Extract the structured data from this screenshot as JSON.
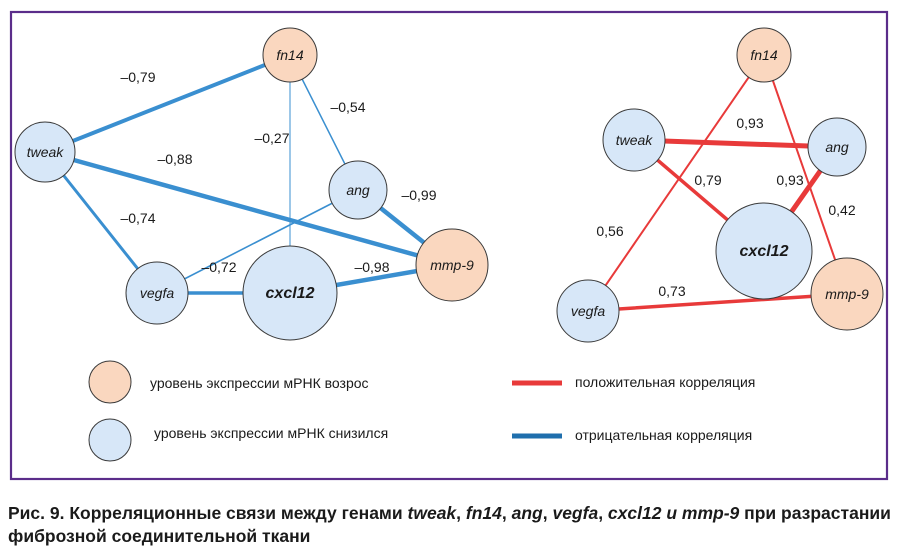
{
  "colors": {
    "frame": "#5b2d8a",
    "node_up_fill": "#fad7bf",
    "node_down_fill": "#d7e7f8",
    "node_stroke": "#3a3a3a",
    "positive": "#e83a3a",
    "negative": "#3a8fd0",
    "legend_negative": "#1f6fad"
  },
  "networks": [
    {
      "id": "negative",
      "nodes": [
        {
          "id": "fn14",
          "label": "fn14",
          "expression": "up"
        },
        {
          "id": "tweak",
          "label": "tweak",
          "expression": "down"
        },
        {
          "id": "ang",
          "label": "ang",
          "expression": "down"
        },
        {
          "id": "vegfa",
          "label": "vegfa",
          "expression": "down"
        },
        {
          "id": "cxcl12",
          "label": "cxcl12",
          "expression": "down"
        },
        {
          "id": "mmp9",
          "label": "mmp-9",
          "expression": "up"
        }
      ],
      "edges": [
        {
          "source": "tweak",
          "target": "fn14",
          "value": "–0,79"
        },
        {
          "source": "fn14",
          "target": "ang",
          "value": "–0,54"
        },
        {
          "source": "fn14",
          "target": "cxcl12",
          "value": "–0,27"
        },
        {
          "source": "tweak",
          "target": "mmp9",
          "value": "–0,88"
        },
        {
          "source": "ang",
          "target": "mmp9",
          "value": "–0,99"
        },
        {
          "source": "tweak",
          "target": "vegfa",
          "value": "–0,74"
        },
        {
          "source": "vegfa",
          "target": "ang",
          "value": "–0,72"
        },
        {
          "source": "vegfa",
          "target": "cxcl12",
          "value": ""
        },
        {
          "source": "cxcl12",
          "target": "mmp9",
          "value": "–0,98"
        }
      ]
    },
    {
      "id": "positive",
      "nodes": [
        {
          "id": "fn14",
          "label": "fn14",
          "expression": "up"
        },
        {
          "id": "tweak",
          "label": "tweak",
          "expression": "down"
        },
        {
          "id": "ang",
          "label": "ang",
          "expression": "down"
        },
        {
          "id": "cxcl12",
          "label": "cxcl12",
          "expression": "down"
        },
        {
          "id": "vegfa",
          "label": "vegfa",
          "expression": "down"
        },
        {
          "id": "mmp9",
          "label": "mmp-9",
          "expression": "up"
        }
      ],
      "edges": [
        {
          "source": "tweak",
          "target": "ang",
          "value": "0,93"
        },
        {
          "source": "tweak",
          "target": "cxcl12",
          "value": "0,79"
        },
        {
          "source": "cxcl12",
          "target": "ang",
          "value": "0,93"
        },
        {
          "source": "fn14",
          "target": "mmp9",
          "value": "0,42"
        },
        {
          "source": "fn14",
          "target": "vegfa",
          "value": "0,56"
        },
        {
          "source": "vegfa",
          "target": "mmp9",
          "value": "0,73"
        }
      ]
    }
  ],
  "legend": {
    "up_label": "уровень экспрессии мРНК возрос",
    "down_label": "уровень экспрессии мРНК снизился",
    "positive_label": "положительная корреляция",
    "negative_label": "отрицательная корреляция"
  },
  "caption": {
    "prefix": "Рис. 9. Корреляционные связи между генами",
    "genes": [
      "tweak",
      "fn14",
      "ang",
      "vegfa",
      "cxcl12",
      "mmp-9"
    ],
    "connector": "и",
    "suffix": "при разрастании фиброзной соединительной ткани"
  }
}
